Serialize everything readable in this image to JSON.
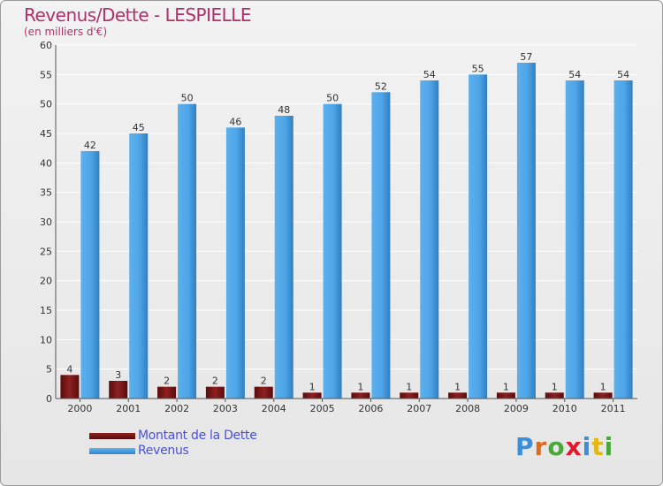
{
  "title": "Revenus/Dette - LESPIELLE",
  "subtitle": "(en milliers d'€)",
  "logo": {
    "text": "Proxiti",
    "colors": [
      "#3a8fd8",
      "#e06a1a",
      "#4aa83a",
      "#e01a2a",
      "#3a8fd8",
      "#e0b81a",
      "#4aa83a"
    ]
  },
  "chart_data": {
    "type": "bar",
    "title": "Revenus/Dette - LESPIELLE",
    "subtitle": "(en milliers d'€)",
    "categories": [
      "2000",
      "2001",
      "2002",
      "2003",
      "2004",
      "2005",
      "2006",
      "2007",
      "2008",
      "2009",
      "2010",
      "2011"
    ],
    "series": [
      {
        "name": "Montant de la Dette",
        "color": "#7a1616",
        "values": [
          4,
          3,
          2,
          2,
          2,
          1,
          1,
          1,
          1,
          1,
          1,
          1
        ]
      },
      {
        "name": "Revenus",
        "color": "#4da3e6",
        "values": [
          42,
          45,
          50,
          46,
          48,
          50,
          52,
          54,
          55,
          57,
          54,
          54
        ]
      }
    ],
    "ylim": [
      0,
      60
    ],
    "yticks": [
      0,
      5,
      10,
      15,
      20,
      25,
      30,
      35,
      40,
      45,
      50,
      55,
      60
    ],
    "grid": true,
    "legend": "bottom-left",
    "xlabel": "",
    "ylabel": ""
  }
}
